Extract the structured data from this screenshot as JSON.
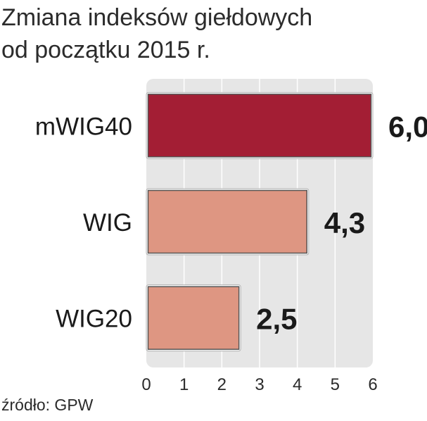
{
  "title_line1": "Zmiana indeksów giełdowych",
  "title_line2": "od początku 2015 r.",
  "source": "źródło: GPW",
  "chart_data": {
    "type": "bar",
    "orientation": "horizontal",
    "categories": [
      "mWIG40",
      "WIG",
      "WIG20"
    ],
    "values": [
      6.0,
      4.3,
      2.5
    ],
    "value_labels": [
      "6,0",
      "4,3",
      "2,5"
    ],
    "xlim": [
      0,
      6
    ],
    "xticks": [
      "0",
      "1",
      "2",
      "3",
      "4",
      "5",
      "6"
    ],
    "grid": true,
    "colors": [
      "#a31e34",
      "#de9682",
      "#de9682"
    ],
    "background": "#e6e6e6"
  }
}
